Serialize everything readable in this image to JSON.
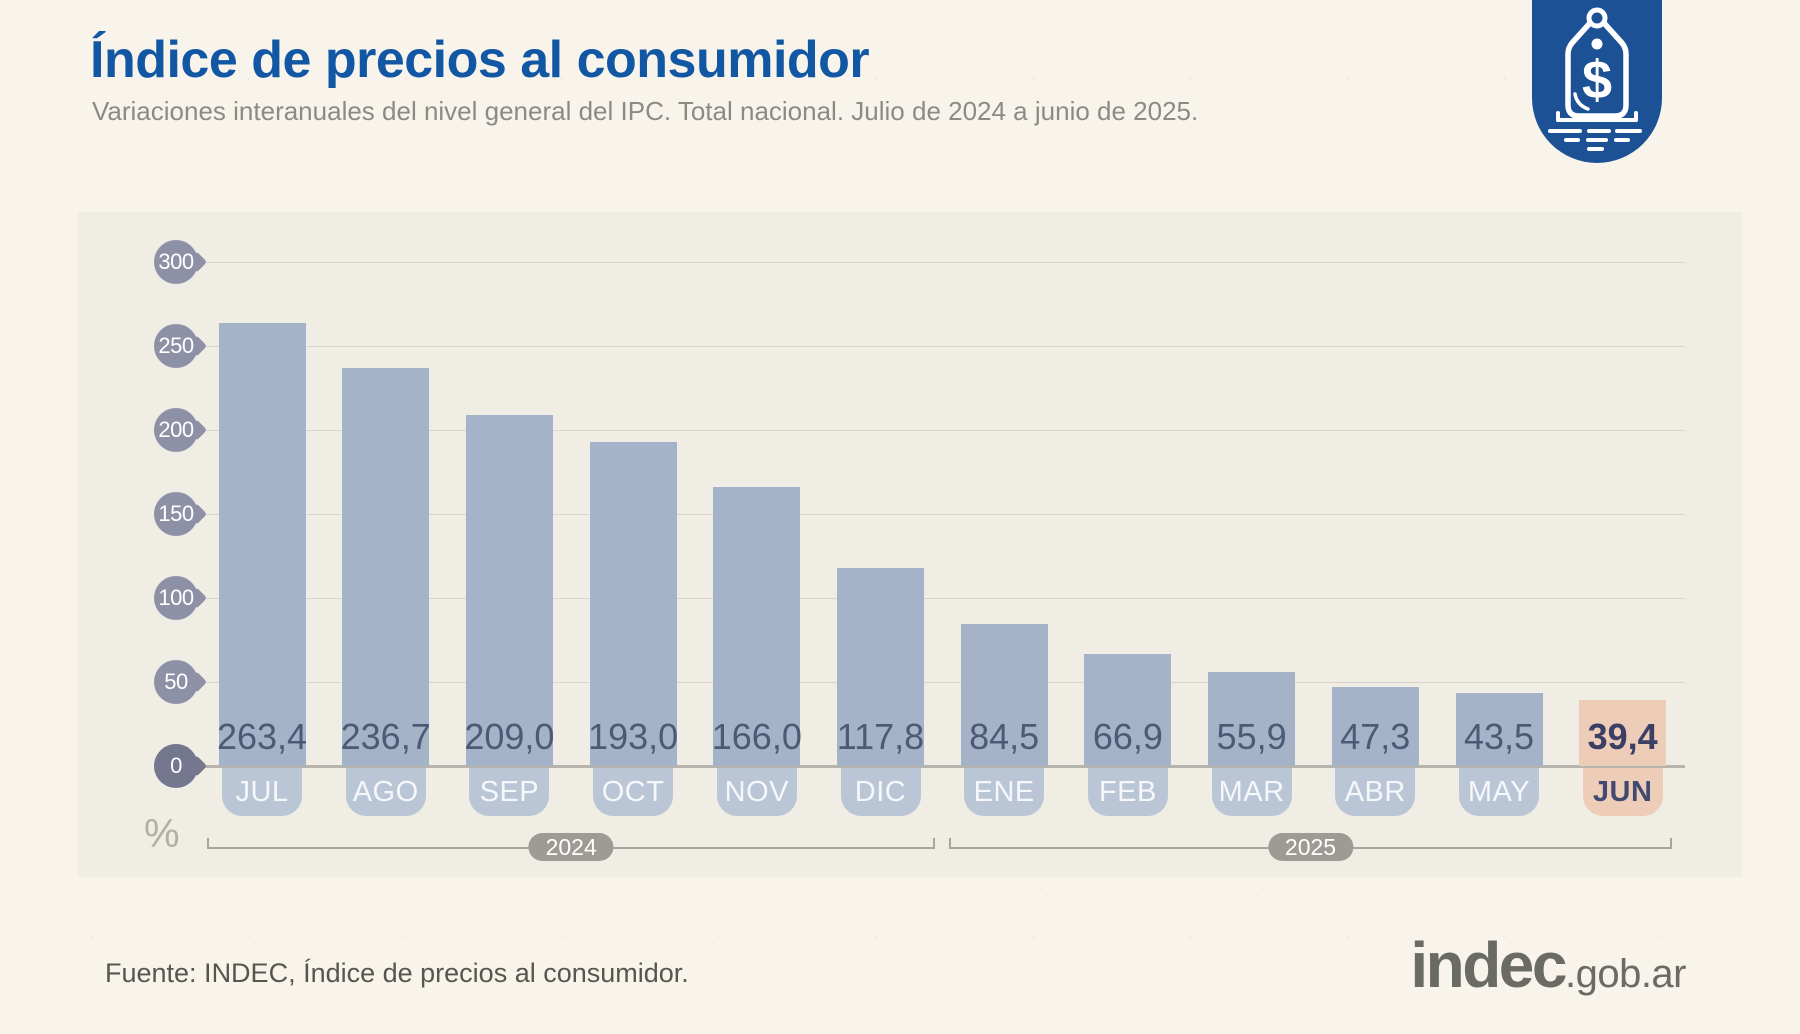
{
  "header": {
    "title": "Índice de precios al consumidor",
    "subtitle": "Variaciones interanuales del nivel general del IPC. Total nacional. Julio de 2024 a junio de 2025."
  },
  "badge": {
    "icon": "price-tag-dollar-icon"
  },
  "footer": {
    "source_note": "Fuente: INDEC, Índice de precios al consumidor.",
    "logo_main": "indec",
    "logo_suffix": ".gob.ar"
  },
  "colors": {
    "page_bg": "#f8f4eb",
    "panel_bg": "#f0ede4",
    "title_color": "#1157a4",
    "subtitle_color": "#8b8b86",
    "bar_color": "#a5b3c8",
    "bar_highlight": "#edccb8",
    "value_text": "#4d5a75",
    "value_text_highlight": "#3a3f63",
    "month_tab_bg": "#bac5d6",
    "month_tab_text": "#f6f7fa",
    "month_tab_text_highlight": "#434a70",
    "axis_bubble": "#8e90a5",
    "axis_bubble_zero": "#75778f",
    "gridline_color": "#d9d5cc",
    "baseline_color": "#b7b4ad",
    "bracket_color": "#a8a59f",
    "year_pill_bg": "#9d9b94",
    "year_pill_text": "#ffffff",
    "percent_color": "#b2afa7",
    "footer_color": "#56564f",
    "logo_color": "#6b6b65",
    "badge_bg": "#1c5295"
  },
  "chart_data": {
    "type": "bar",
    "title": "Índice de precios al consumidor",
    "subtitle": "Variaciones interanuales del nivel general del IPC. Total nacional. Julio de 2024 a junio de 2025.",
    "xlabel": "",
    "ylabel": "%",
    "ylim": [
      0,
      300
    ],
    "yticks": [
      0,
      50,
      100,
      150,
      200,
      250,
      300
    ],
    "grid": true,
    "legend": "none",
    "categories": [
      "JUL",
      "AGO",
      "SEP",
      "OCT",
      "NOV",
      "DIC",
      "ENE",
      "FEB",
      "MAR",
      "ABR",
      "MAY",
      "JUN"
    ],
    "values": [
      263.4,
      236.7,
      209.0,
      193.0,
      166.0,
      117.8,
      84.5,
      66.9,
      55.9,
      47.3,
      43.5,
      39.4
    ],
    "value_labels": [
      "263,4",
      "236,7",
      "209,0",
      "193,0",
      "166,0",
      "117,8",
      "84,5",
      "66,9",
      "55,9",
      "47,3",
      "43,5",
      "39,4"
    ],
    "highlighted_category": "JUN",
    "year_groups": [
      {
        "label": "2024",
        "from": "JUL",
        "to": "DIC"
      },
      {
        "label": "2025",
        "from": "ENE",
        "to": "JUN"
      }
    ]
  }
}
